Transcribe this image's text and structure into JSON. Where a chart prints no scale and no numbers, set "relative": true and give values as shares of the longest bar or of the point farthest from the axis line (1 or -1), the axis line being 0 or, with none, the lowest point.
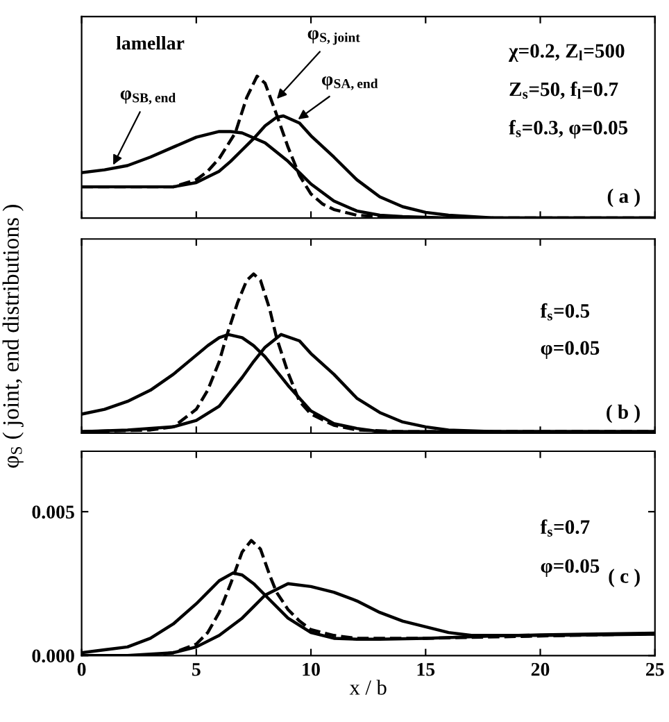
{
  "chart_data": [
    {
      "type": "line",
      "relative": true,
      "xlim": [
        0,
        25
      ],
      "xticks": [
        0,
        5,
        10,
        15,
        20,
        25
      ],
      "tick_labels": false,
      "marker": "none",
      "grid": false,
      "legend": false,
      "series": [
        {
          "color": "#000000",
          "line_style": "solid",
          "x": [
            0,
            1,
            2,
            3,
            4,
            5,
            6,
            6.5,
            7,
            8,
            9,
            10,
            11,
            12,
            13,
            14,
            16,
            18,
            25
          ],
          "values": [
            0.32,
            0.34,
            0.37,
            0.43,
            0.5,
            0.57,
            0.61,
            0.61,
            0.6,
            0.53,
            0.4,
            0.24,
            0.12,
            0.05,
            0.02,
            0.01,
            0,
            0,
            0
          ]
        },
        {
          "color": "#000000",
          "line_style": "solid",
          "x": [
            0,
            2,
            4,
            5,
            6,
            6.5,
            7,
            7.5,
            8,
            8.5,
            8.8,
            9.5,
            10,
            11,
            12,
            13,
            14,
            15,
            16,
            18,
            25
          ],
          "values": [
            0.22,
            0.22,
            0.22,
            0.25,
            0.33,
            0.4,
            0.48,
            0.56,
            0.65,
            0.71,
            0.72,
            0.67,
            0.58,
            0.43,
            0.27,
            0.15,
            0.08,
            0.04,
            0.02,
            0,
            0
          ]
        },
        {
          "color": "#000000",
          "line_style": "dashed",
          "x": [
            0,
            2,
            4,
            5,
            5.5,
            6,
            6.7,
            7.2,
            7.65,
            8,
            8.5,
            9,
            9.5,
            10,
            10.5,
            11,
            12,
            14,
            25
          ],
          "values": [
            0.22,
            0.22,
            0.22,
            0.27,
            0.33,
            0.42,
            0.6,
            0.85,
            1.0,
            0.95,
            0.73,
            0.5,
            0.3,
            0.17,
            0.1,
            0.06,
            0.02,
            0,
            0
          ]
        }
      ],
      "annotations": [
        "lamellar",
        "χ=0.2, Z$_{l}$=500",
        "Z$_{s}$=50, f$_{l}$=0.7",
        "f$_{s}$=0.3, φ=0.05",
        "( a )",
        {
          "text": "φ$_{SB,end}$",
          "x": 1.3,
          "y": 0.35
        },
        {
          "text": "φ$_{S,joint}$",
          "x": 8.4,
          "y": 0.82
        },
        {
          "text": "φ$_{SA,end}$",
          "x": 9.3,
          "y": 0.68
        }
      ]
    },
    {
      "type": "line",
      "relative": true,
      "xlim": [
        0,
        25
      ],
      "xticks": [
        0,
        5,
        10,
        15,
        20,
        25
      ],
      "tick_labels": false,
      "marker": "none",
      "grid": false,
      "legend": false,
      "ylabel": "φ$_{S}$ ( joint, end distributions )",
      "series": [
        {
          "color": "#000000",
          "line_style": "solid",
          "x": [
            0,
            1,
            2,
            3,
            4,
            5,
            5.5,
            6,
            6.4,
            7,
            7.5,
            8,
            9,
            10,
            11,
            12,
            13,
            15,
            18,
            25
          ],
          "values": [
            0.12,
            0.15,
            0.2,
            0.27,
            0.37,
            0.49,
            0.55,
            0.6,
            0.62,
            0.6,
            0.55,
            0.48,
            0.3,
            0.14,
            0.06,
            0.03,
            0.01,
            0.01,
            0.01,
            0.01
          ]
        },
        {
          "color": "#000000",
          "line_style": "solid",
          "x": [
            0,
            2,
            4,
            5,
            6,
            7,
            7.5,
            8,
            8.7,
            9.5,
            10,
            11,
            12,
            13,
            14,
            15,
            16,
            18,
            25
          ],
          "values": [
            0.01,
            0.02,
            0.04,
            0.08,
            0.17,
            0.35,
            0.45,
            0.54,
            0.62,
            0.58,
            0.5,
            0.37,
            0.22,
            0.13,
            0.07,
            0.04,
            0.02,
            0.01,
            0.01
          ]
        },
        {
          "color": "#000000",
          "line_style": "dashed",
          "x": [
            0,
            3,
            4,
            5,
            5.5,
            6,
            6.3,
            6.8,
            7.2,
            7.5,
            7.8,
            8.2,
            8.5,
            9,
            9.5,
            10,
            11,
            12,
            14,
            25
          ],
          "values": [
            0.01,
            0.02,
            0.04,
            0.15,
            0.27,
            0.45,
            0.6,
            0.82,
            0.96,
            1.0,
            0.96,
            0.78,
            0.6,
            0.38,
            0.2,
            0.12,
            0.05,
            0.02,
            0.01,
            0.01
          ]
        }
      ],
      "annotations": [
        "f$_{s}$=0.5",
        "φ=0.05",
        "( b )"
      ]
    },
    {
      "type": "line",
      "xlim": [
        0,
        25
      ],
      "ylim": [
        0,
        0.0071
      ],
      "xticks": [
        0,
        5,
        10,
        15,
        20,
        25
      ],
      "yticks": [
        {
          "value": 0,
          "label": "0.000"
        },
        {
          "value": 0.005,
          "label": "0.005"
        }
      ],
      "marker": "none",
      "grid": false,
      "legend": false,
      "xlabel": "x / b",
      "series": [
        {
          "color": "#000000",
          "line_style": "solid",
          "x": [
            0,
            1,
            2,
            3,
            4,
            5,
            5.5,
            6,
            6.6,
            7,
            7.5,
            8,
            9,
            10,
            11,
            12,
            13,
            15,
            18,
            20,
            25
          ],
          "values": [
            0.0001,
            0.0002,
            0.0003,
            0.0006,
            0.0011,
            0.0018,
            0.0022,
            0.0026,
            0.00287,
            0.0028,
            0.0025,
            0.0021,
            0.0013,
            0.0008,
            0.0006,
            0.00057,
            0.00057,
            0.0006,
            0.00068,
            0.00072,
            0.00078
          ]
        },
        {
          "color": "#000000",
          "line_style": "solid",
          "x": [
            0,
            2,
            4,
            5,
            6,
            7,
            7.5,
            8,
            9,
            10,
            11,
            12,
            13,
            14,
            15,
            16,
            17,
            20,
            25
          ],
          "values": [
            0,
            0,
            0.0001,
            0.0003,
            0.0007,
            0.0013,
            0.0017,
            0.0021,
            0.0025,
            0.0024,
            0.0022,
            0.0019,
            0.0015,
            0.0012,
            0.001,
            0.0008,
            0.0007,
            0.0007,
            0.00074
          ]
        },
        {
          "color": "#000000",
          "line_style": "dashed",
          "x": [
            0,
            3,
            4,
            5,
            5.5,
            6,
            6.5,
            7,
            7.4,
            7.8,
            8.2,
            8.5,
            9,
            9.5,
            10,
            11,
            12,
            15,
            25
          ],
          "values": [
            0,
            0,
            0.0001,
            0.0004,
            0.0008,
            0.0015,
            0.0025,
            0.0036,
            0.004,
            0.0037,
            0.0028,
            0.0022,
            0.0016,
            0.0012,
            0.0009,
            0.0007,
            0.0006,
            0.0006,
            0.00076
          ]
        }
      ],
      "annotations": [
        "f$_{s}$=0.7",
        "φ=0.05",
        "( c )"
      ]
    }
  ]
}
